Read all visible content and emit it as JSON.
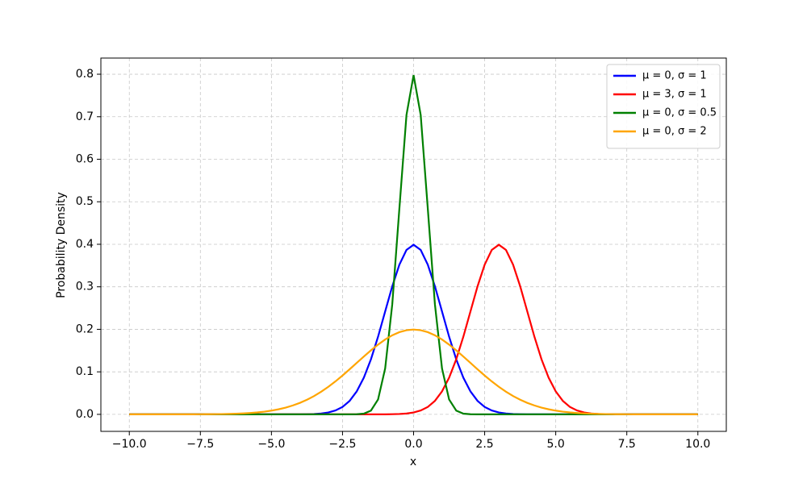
{
  "chart_data": {
    "type": "line",
    "xlabel": "x",
    "ylabel": "Probability Density",
    "x": [
      -10,
      -9.75,
      -9.5,
      -9.25,
      -9,
      -8.75,
      -8.5,
      -8.25,
      -8,
      -7.75,
      -7.5,
      -7.25,
      -7,
      -6.75,
      -6.5,
      -6.25,
      -6,
      -5.75,
      -5.5,
      -5.25,
      -5,
      -4.75,
      -4.5,
      -4.25,
      -4,
      -3.75,
      -3.5,
      -3.25,
      -3,
      -2.75,
      -2.5,
      -2.25,
      -2,
      -1.75,
      -1.5,
      -1.25,
      -1,
      -0.75,
      -0.5,
      -0.25,
      0,
      0.25,
      0.5,
      0.75,
      1,
      1.25,
      1.5,
      1.75,
      2,
      2.25,
      2.5,
      2.75,
      3,
      3.25,
      3.5,
      3.75,
      4,
      4.25,
      4.5,
      4.75,
      5,
      5.25,
      5.5,
      5.75,
      6,
      6.25,
      6.5,
      6.75,
      7,
      7.25,
      7.5,
      7.75,
      8,
      8.25,
      8.5,
      8.75,
      9,
      9.25,
      9.5,
      9.75,
      10
    ],
    "series": [
      {
        "name": "μ = 0, σ = 1",
        "color": "#0000ff",
        "values": [
          0,
          0,
          0,
          0,
          0,
          0,
          0,
          0,
          0,
          0,
          0,
          0,
          0,
          0,
          0,
          0,
          0,
          0,
          0,
          0,
          0,
          0,
          0,
          0,
          0.0001,
          0.0004,
          0.0009,
          0.002,
          0.0044,
          0.0091,
          0.0175,
          0.0317,
          0.054,
          0.0863,
          0.1295,
          0.1826,
          0.242,
          0.3011,
          0.3521,
          0.3867,
          0.3989,
          0.3867,
          0.3521,
          0.3011,
          0.242,
          0.1826,
          0.1295,
          0.0863,
          0.054,
          0.0317,
          0.0175,
          0.0091,
          0.0044,
          0.002,
          0.0009,
          0.0004,
          0.0001,
          0,
          0,
          0,
          0,
          0,
          0,
          0,
          0,
          0,
          0,
          0,
          0,
          0,
          0,
          0,
          0,
          0,
          0,
          0,
          0,
          0,
          0,
          0,
          0
        ]
      },
      {
        "name": "μ = 3, σ = 1",
        "color": "#ff0000",
        "values": [
          0,
          0,
          0,
          0,
          0,
          0,
          0,
          0,
          0,
          0,
          0,
          0,
          0,
          0,
          0,
          0,
          0,
          0,
          0,
          0,
          0,
          0,
          0,
          0,
          0,
          0,
          0,
          0,
          0,
          0,
          0,
          0,
          0,
          0,
          0,
          0,
          0.0001,
          0.0004,
          0.0009,
          0.002,
          0.0044,
          0.0091,
          0.0175,
          0.0317,
          0.054,
          0.0863,
          0.1295,
          0.1826,
          0.242,
          0.3011,
          0.3521,
          0.3867,
          0.3989,
          0.3867,
          0.3521,
          0.3011,
          0.242,
          0.1826,
          0.1295,
          0.0863,
          0.054,
          0.0317,
          0.0175,
          0.0091,
          0.0044,
          0.002,
          0.0009,
          0.0004,
          0.0001,
          0,
          0,
          0,
          0,
          0,
          0,
          0,
          0,
          0,
          0,
          0,
          0
        ]
      },
      {
        "name": "μ = 0, σ = 0.5",
        "color": "#008000",
        "values": [
          0,
          0,
          0,
          0,
          0,
          0,
          0,
          0,
          0,
          0,
          0,
          0,
          0,
          0,
          0,
          0,
          0,
          0,
          0,
          0,
          0,
          0,
          0,
          0,
          0,
          0,
          0,
          0,
          0,
          0,
          0,
          0,
          0.0003,
          0.0017,
          0.0089,
          0.035,
          0.108,
          0.259,
          0.4839,
          0.7041,
          0.7979,
          0.7041,
          0.4839,
          0.259,
          0.108,
          0.035,
          0.0089,
          0.0017,
          0.0003,
          0,
          0,
          0,
          0,
          0,
          0,
          0,
          0,
          0,
          0,
          0,
          0,
          0,
          0,
          0,
          0,
          0,
          0,
          0,
          0,
          0,
          0,
          0,
          0,
          0,
          0,
          0,
          0,
          0,
          0,
          0,
          0
        ]
      },
      {
        "name": "μ = 0, σ = 2",
        "color": "#ffa500",
        "values": [
          0,
          0,
          0,
          0,
          0,
          0,
          0,
          0,
          0.0001,
          0.0001,
          0.0002,
          0.0003,
          0.0004,
          0.0007,
          0.001,
          0.0015,
          0.0022,
          0.0032,
          0.0045,
          0.0063,
          0.0088,
          0.0119,
          0.0159,
          0.0209,
          0.027,
          0.0344,
          0.0431,
          0.0533,
          0.0648,
          0.0775,
          0.0913,
          0.106,
          0.121,
          0.136,
          0.1506,
          0.164,
          0.176,
          0.186,
          0.1933,
          0.1979,
          0.1995,
          0.1979,
          0.1933,
          0.186,
          0.176,
          0.164,
          0.1506,
          0.136,
          0.121,
          0.106,
          0.0913,
          0.0775,
          0.0648,
          0.0533,
          0.0431,
          0.0344,
          0.027,
          0.0209,
          0.0159,
          0.0119,
          0.0088,
          0.0063,
          0.0045,
          0.0032,
          0.0022,
          0.0015,
          0.001,
          0.0007,
          0.0004,
          0.0003,
          0.0002,
          0.0001,
          0.0001,
          0,
          0,
          0,
          0,
          0,
          0,
          0,
          0
        ]
      }
    ],
    "xlim": [
      -11,
      11
    ],
    "ylim": [
      -0.04,
      0.838
    ],
    "xticks": [
      {
        "value": -10,
        "label": "−10.0"
      },
      {
        "value": -7.5,
        "label": "−7.5"
      },
      {
        "value": -5,
        "label": "−5.0"
      },
      {
        "value": -2.5,
        "label": "−2.5"
      },
      {
        "value": 0,
        "label": "0.0"
      },
      2.5,
      {
        "value": 5,
        "label": "5.0"
      },
      7.5,
      {
        "value": 10,
        "label": "10.0"
      }
    ],
    "yticks": [
      {
        "value": 0,
        "label": "0.0"
      },
      0.1,
      0.2,
      0.3,
      0.4,
      0.5,
      0.6,
      0.7,
      0.8
    ],
    "grid": true,
    "legend": "upper right"
  }
}
